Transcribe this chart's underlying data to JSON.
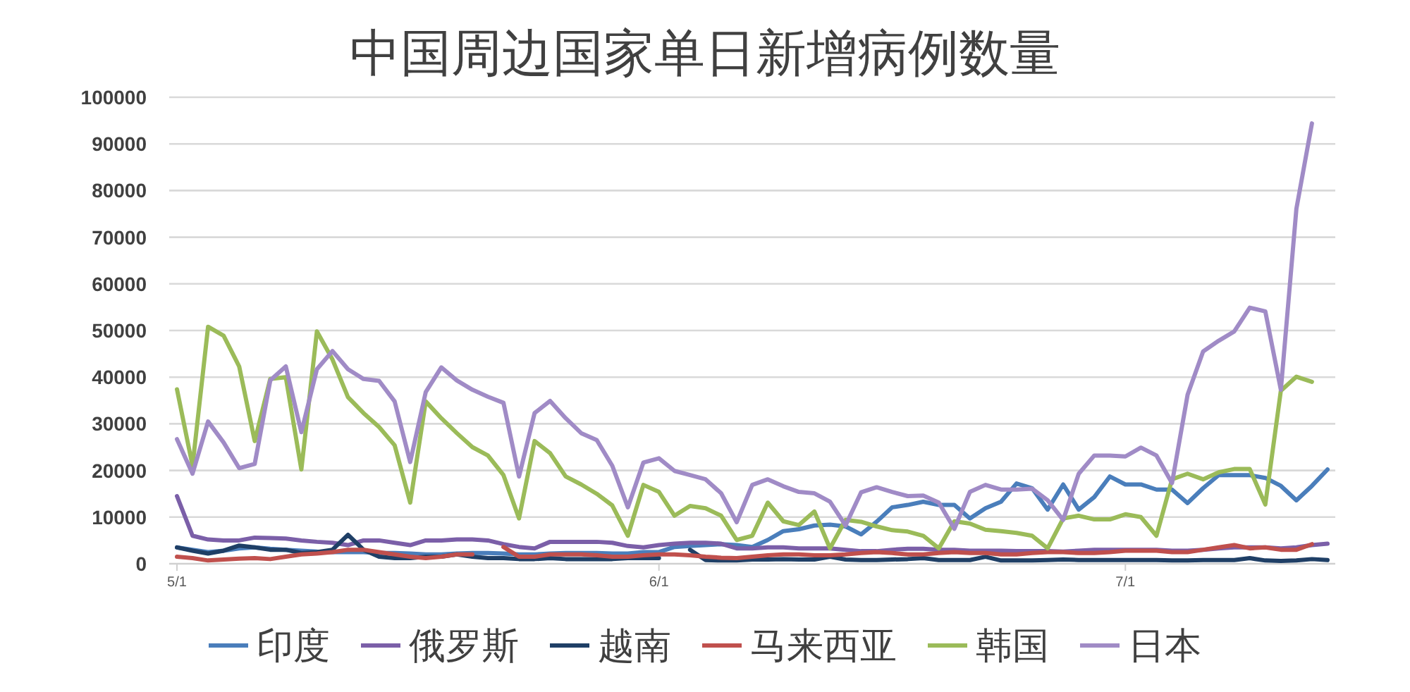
{
  "chart_data": {
    "type": "line",
    "title": "中国周边国家单日新增病例数量",
    "categories": [
      "5/1",
      null,
      null,
      null,
      null,
      null,
      null,
      null,
      null,
      null,
      null,
      null,
      null,
      null,
      null,
      null,
      null,
      null,
      null,
      null,
      null,
      null,
      null,
      null,
      null,
      null,
      null,
      null,
      null,
      null,
      null,
      "6/1",
      null,
      null,
      null,
      null,
      null,
      null,
      null,
      null,
      null,
      null,
      null,
      null,
      null,
      null,
      null,
      null,
      null,
      null,
      null,
      null,
      null,
      null,
      null,
      null,
      null,
      null,
      null,
      null,
      null,
      "7/1",
      null,
      null,
      null,
      null,
      null,
      null,
      null,
      null,
      null,
      null,
      null,
      null,
      null
    ],
    "ylim": [
      0,
      100000
    ],
    "yticks": [
      0,
      10000,
      20000,
      30000,
      40000,
      50000,
      60000,
      70000,
      80000,
      90000,
      100000
    ],
    "grid": "y",
    "legend": "bottom",
    "series": [
      {
        "name": "印度",
        "color": "#4a7ebb",
        "values": [
          3500,
          3000,
          2500,
          2800,
          3300,
          3500,
          3200,
          3000,
          2800,
          2600,
          2500,
          2500,
          2500,
          2300,
          2300,
          2200,
          2000,
          2000,
          2200,
          2300,
          2300,
          2200,
          2000,
          2000,
          2200,
          2300,
          2300,
          2300,
          2200,
          2200,
          2500,
          2500,
          3600,
          3800,
          4000,
          4200,
          4000,
          3600,
          5100,
          7000,
          7400,
          8200,
          8400,
          8000,
          6300,
          9000,
          12100,
          12600,
          13300,
          12600,
          12600,
          9700,
          11900,
          13300,
          17200,
          16200,
          11600,
          17000,
          11600,
          14300,
          18700,
          17000,
          17000,
          15900,
          15900,
          13000,
          16200,
          19000,
          19000,
          19000,
          18400,
          16700,
          13600,
          16700,
          20200
        ]
      },
      {
        "name": "俄罗斯",
        "color": "#7b5fa8",
        "values": [
          14500,
          6000,
          5200,
          5000,
          5000,
          5600,
          5500,
          5400,
          5000,
          4700,
          4500,
          4000,
          5000,
          5000,
          4500,
          4000,
          5000,
          5000,
          5200,
          5200,
          5000,
          4200,
          3600,
          3300,
          4700,
          4700,
          4700,
          4700,
          4500,
          3800,
          3500,
          4000,
          4300,
          4500,
          4500,
          4300,
          3300,
          3300,
          3500,
          3500,
          3300,
          3300,
          3300,
          3000,
          2700,
          2700,
          3000,
          3200,
          3200,
          3000,
          3000,
          2800,
          2800,
          2800,
          2700,
          2700,
          2700,
          2600,
          2800,
          3000,
          3000,
          3000,
          3000,
          3000,
          2800,
          2800,
          3000,
          3300,
          3500,
          3500,
          3500,
          3300,
          3500,
          4000,
          4300
        ]
      },
      {
        "name": "越南",
        "color": "#1f3f66",
        "values": [
          3500,
          2800,
          2200,
          2800,
          3900,
          3500,
          3000,
          3000,
          2300,
          2500,
          3000,
          6200,
          3000,
          1500,
          1200,
          1200,
          1500,
          1500,
          2000,
          1500,
          1200,
          1200,
          1000,
          1000,
          1200,
          1000,
          1000,
          1000,
          1000,
          1200,
          1200,
          1200,
          null,
          3000,
          800,
          700,
          700,
          900,
          900,
          1000,
          900,
          900,
          1500,
          900,
          800,
          800,
          900,
          1000,
          1200,
          800,
          800,
          800,
          1500,
          700,
          700,
          700,
          800,
          900,
          800,
          800,
          800,
          800,
          800,
          800,
          700,
          700,
          800,
          800,
          800,
          1200,
          700,
          600,
          700,
          1000,
          800
        ]
      },
      {
        "name": "马来西亚",
        "color": "#c0504d",
        "values": [
          1500,
          1200,
          700,
          900,
          1100,
          1200,
          1000,
          1500,
          2000,
          2200,
          2500,
          3000,
          3000,
          2500,
          2000,
          1500,
          1200,
          1500,
          2000,
          2000,
          null,
          3600,
          1500,
          1500,
          2000,
          2000,
          2000,
          1800,
          1500,
          1500,
          1800,
          2000,
          2000,
          1800,
          1500,
          1300,
          1200,
          1500,
          1800,
          2000,
          2000,
          1800,
          1800,
          2000,
          2300,
          2500,
          2300,
          2000,
          2000,
          2300,
          2500,
          2300,
          2300,
          2000,
          2000,
          2300,
          2500,
          2500,
          2300,
          2300,
          2500,
          2800,
          2800,
          2800,
          2500,
          2500,
          3000,
          3500,
          4000,
          3300,
          3500,
          3000,
          3000,
          4200,
          null
        ]
      },
      {
        "name": "韩国",
        "color": "#9bbb59",
        "values": [
          37400,
          21000,
          50800,
          48900,
          42300,
          26300,
          39600,
          40000,
          20200,
          49800,
          43800,
          35700,
          32300,
          29300,
          25400,
          13100,
          34800,
          31200,
          28000,
          25000,
          23200,
          19000,
          9700,
          26300,
          23700,
          18700,
          17000,
          15000,
          12500,
          6000,
          16900,
          15400,
          10300,
          12400,
          11900,
          10300,
          5100,
          6000,
          13100,
          9100,
          8300,
          11200,
          3300,
          9400,
          9000,
          8000,
          7200,
          6900,
          6000,
          3300,
          9100,
          8600,
          7300,
          7000,
          6600,
          6000,
          3300,
          9700,
          10300,
          9500,
          9500,
          10600,
          10000,
          6000,
          18100,
          19300,
          18100,
          19600,
          20300,
          20300,
          12700,
          37100,
          40100,
          39000,
          null
        ]
      },
      {
        "name": "日本",
        "color": "#a08bc6",
        "values": [
          26700,
          19300,
          30500,
          26000,
          20500,
          21400,
          39300,
          42300,
          28200,
          41700,
          45600,
          41700,
          39600,
          39200,
          34800,
          21800,
          36800,
          42100,
          39300,
          37300,
          35800,
          34500,
          18700,
          32300,
          34900,
          31200,
          28000,
          26500,
          21000,
          12100,
          21700,
          22600,
          19900,
          19000,
          18100,
          15100,
          8900,
          16900,
          18100,
          16600,
          15400,
          15100,
          13300,
          8200,
          15300,
          16400,
          15400,
          14500,
          14600,
          13100,
          7500,
          15400,
          16900,
          15900,
          15900,
          16100,
          13600,
          9400,
          19300,
          23200,
          23200,
          23000,
          24900,
          23200,
          17300,
          36200,
          45500,
          47800,
          49800,
          54900,
          54100,
          37300,
          76100,
          94400,
          null
        ]
      }
    ]
  }
}
